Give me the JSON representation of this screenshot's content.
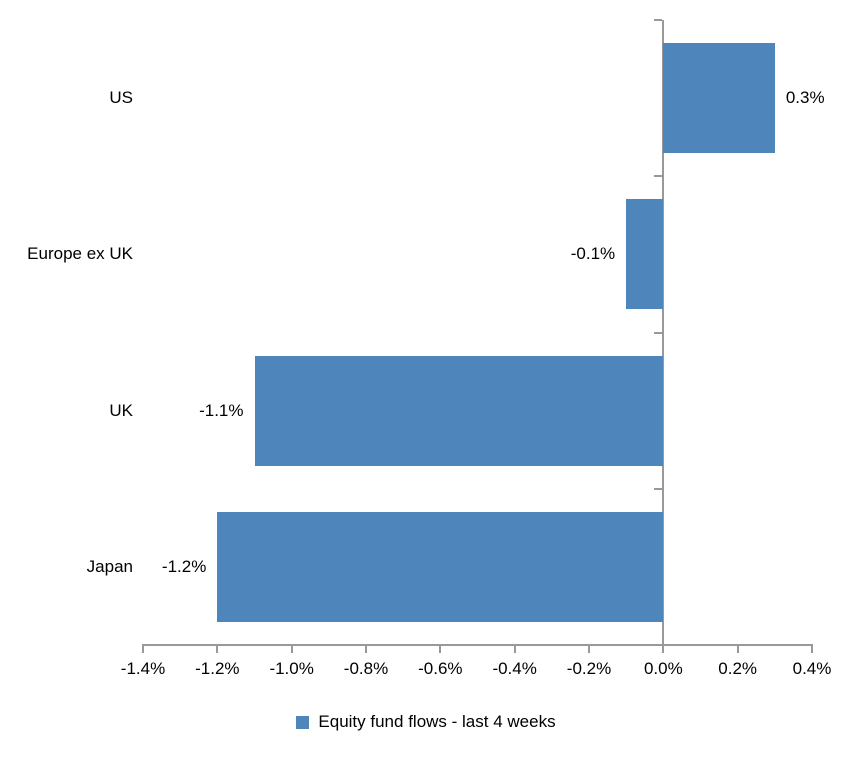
{
  "chart_data": {
    "type": "bar",
    "orientation": "horizontal",
    "title": "",
    "categories": [
      "US",
      "Europe ex UK",
      "UK",
      "Japan"
    ],
    "values": [
      0.3,
      -0.1,
      -1.1,
      -1.2
    ],
    "value_labels": [
      "0.3%",
      "-0.1%",
      "-1.1%",
      "-1.2%"
    ],
    "series": [
      {
        "name": "Equity fund flows - last 4 weeks",
        "values": [
          0.3,
          -0.1,
          -1.1,
          -1.2
        ]
      }
    ],
    "series_name": "Equity fund flows - last 4 weeks",
    "xlabel": "",
    "ylabel": "",
    "xlim": [
      -1.4,
      0.4
    ],
    "x_ticks": [
      -1.4,
      -1.2,
      -1.0,
      -0.8,
      -0.6,
      -0.4,
      -0.2,
      0.0,
      0.2,
      0.4
    ],
    "x_tick_labels": [
      "-1.4%",
      "-1.2%",
      "-1.0%",
      "-0.8%",
      "-0.6%",
      "-0.4%",
      "-0.2%",
      "0.0%",
      "0.2%",
      "0.4%"
    ],
    "grid": false,
    "legend_position": "bottom",
    "bar_color": "#4E86BC",
    "axis_color": "#999999",
    "text_color": "#000000",
    "background_color": "#FFFFFF"
  },
  "legend": {
    "label": "Equity fund flows - last 4 weeks",
    "marker_color": "#4E86BC"
  }
}
